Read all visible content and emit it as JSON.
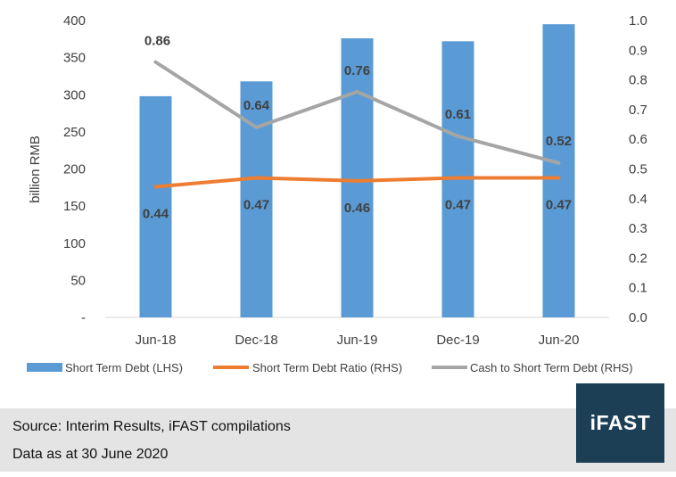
{
  "chart_data": {
    "type": "bar",
    "categories": [
      "Jun-18",
      "Dec-18",
      "Jun-19",
      "Dec-19",
      "Jun-20"
    ],
    "ylabel": "billion RMB",
    "ylim": [
      0,
      400
    ],
    "y2lim": [
      0.0,
      1.0
    ],
    "y_tick_labels": [
      "-",
      "50",
      "100",
      "150",
      "200",
      "250",
      "300",
      "350",
      "400"
    ],
    "y_tick_values": [
      0,
      50,
      100,
      150,
      200,
      250,
      300,
      350,
      400
    ],
    "y2_tick_labels": [
      "0.0",
      "0.1",
      "0.2",
      "0.3",
      "0.4",
      "0.5",
      "0.6",
      "0.7",
      "0.8",
      "0.9",
      "1.0"
    ],
    "y2_tick_values": [
      0.0,
      0.1,
      0.2,
      0.3,
      0.4,
      0.5,
      0.6,
      0.7,
      0.8,
      0.9,
      1.0
    ],
    "legend_position": "bottom",
    "series": [
      {
        "name": "Short Term Debt (LHS)",
        "type": "bar",
        "axis": "left",
        "color": "#5b9bd5",
        "values": [
          298,
          318,
          376,
          372,
          395
        ]
      },
      {
        "name": "Short Term Debt Ratio (RHS)",
        "type": "line",
        "axis": "right",
        "color": "#ed7d31",
        "values": [
          0.44,
          0.47,
          0.46,
          0.47,
          0.47
        ],
        "labels": [
          "0.44",
          "0.47",
          "0.46",
          "0.47",
          "0.47"
        ]
      },
      {
        "name": "Cash to Short Term Debt (RHS)",
        "type": "line",
        "axis": "right",
        "color": "#a5a5a5",
        "values": [
          0.86,
          0.64,
          0.76,
          0.61,
          0.52
        ],
        "labels": [
          "0.86",
          "0.64",
          "0.76",
          "0.61",
          "0.52"
        ]
      }
    ]
  },
  "footer": {
    "source": "Source: Interim Results, iFAST compilations",
    "data_note": "Data as at 30 June 2020"
  },
  "brand": {
    "name": "iFAST",
    "color": "#1c3f56"
  }
}
